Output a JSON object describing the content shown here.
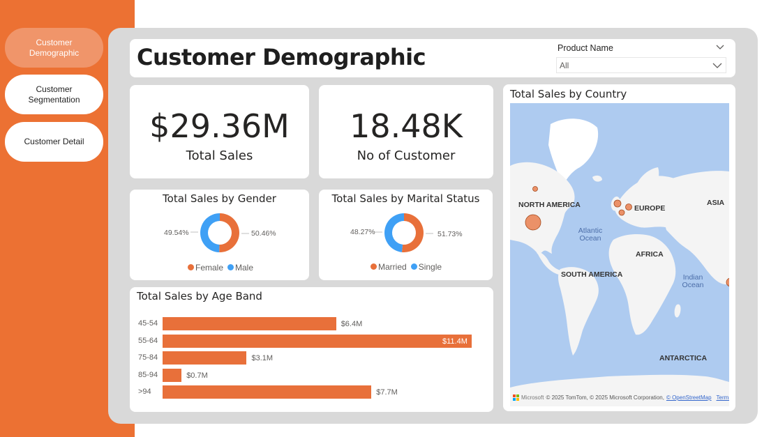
{
  "nav": {
    "items": [
      {
        "label": "Customer Demographic",
        "active": true
      },
      {
        "label": "Customer Segmentation",
        "active": false
      },
      {
        "label": "Customer Detail",
        "active": false
      }
    ]
  },
  "header": {
    "title": "Customer Demographic"
  },
  "slicer": {
    "label": "Product Name",
    "value": "All"
  },
  "kpis": {
    "total_sales": {
      "value": "$29.36M",
      "label": "Total Sales"
    },
    "customers": {
      "value": "18.48K",
      "label": "No of Customer"
    }
  },
  "gender": {
    "title": "Total Sales by Gender",
    "left_label": "49.54%",
    "right_label": "50.46%",
    "legend": [
      "Female",
      "Male"
    ]
  },
  "marital": {
    "title": "Total Sales by Marital Status",
    "left_label": "48.27%",
    "right_label": "51.73%",
    "legend": [
      "Married",
      "Single"
    ]
  },
  "age": {
    "title": "Total Sales by Age Band"
  },
  "map": {
    "title": "Total Sales by Country",
    "continents": {
      "north_america": "NORTH AMERICA",
      "europe": "EUROPE",
      "asia": "ASIA",
      "africa": "AFRICA",
      "south_america": "SOUTH AMERICA",
      "antarctica": "ANTARCTICA"
    },
    "oceans": {
      "atlantic": "Atlantic Ocean",
      "indian": "Indian Ocean"
    },
    "attribution": {
      "brand": "Microsoft",
      "text": "© 2025 TomTom, © 2025 Microsoft Corporation,",
      "osm": "© OpenStreetMap",
      "terms": "Terms"
    }
  },
  "colors": {
    "accent": "#EC7133",
    "female": "#E8703A",
    "male": "#3FA0F5",
    "bar": "#E8703A"
  },
  "chart_data": [
    {
      "type": "pie",
      "title": "Total Sales by Gender",
      "series": [
        {
          "name": "Female",
          "value": 50.46
        },
        {
          "name": "Male",
          "value": 49.54
        }
      ]
    },
    {
      "type": "pie",
      "title": "Total Sales by Marital Status",
      "series": [
        {
          "name": "Married",
          "value": 51.73
        },
        {
          "name": "Single",
          "value": 48.27
        }
      ]
    },
    {
      "type": "bar",
      "title": "Total Sales by Age Band",
      "orientation": "horizontal",
      "categories": [
        "45-54",
        "55-64",
        "75-84",
        "85-94",
        ">94"
      ],
      "values": [
        6.4,
        11.4,
        3.1,
        0.7,
        7.7
      ],
      "value_labels": [
        "$6.4M",
        "$11.4M",
        "$3.1M",
        "$0.7M",
        "$7.7M"
      ],
      "unit": "$M"
    }
  ]
}
